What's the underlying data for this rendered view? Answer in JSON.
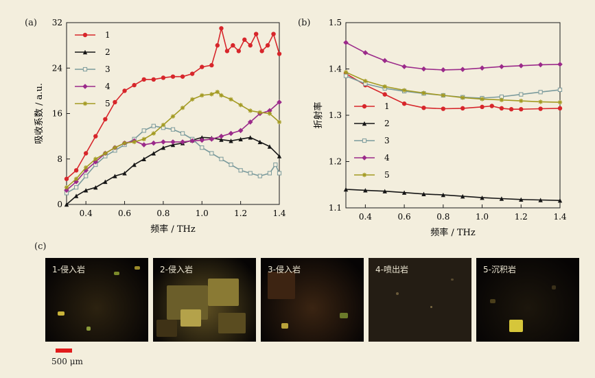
{
  "panels": {
    "a": "(a)",
    "b": "(b)",
    "c": "(c)"
  },
  "chart_data": [
    {
      "panel": "(a)",
      "type": "line",
      "xlabel": "频率 / THz",
      "ylabel": "吸收系数 / a.u.",
      "xlim": [
        0.3,
        1.4
      ],
      "ylim": [
        0,
        32
      ],
      "xticks": [
        0.4,
        0.6,
        0.8,
        1.0,
        1.2,
        1.4
      ],
      "yticks": [
        0,
        8,
        16,
        24,
        32
      ],
      "legend": "top-left",
      "series": [
        {
          "name": "1",
          "color": "#d7262b",
          "marker": "circle",
          "x": [
            0.3,
            0.35,
            0.4,
            0.45,
            0.5,
            0.55,
            0.6,
            0.65,
            0.7,
            0.75,
            0.8,
            0.85,
            0.9,
            0.95,
            1.0,
            1.05,
            1.08,
            1.1,
            1.13,
            1.16,
            1.19,
            1.22,
            1.25,
            1.28,
            1.31,
            1.34,
            1.37,
            1.4
          ],
          "y": [
            4.5,
            6,
            9,
            12,
            15,
            18,
            20,
            21,
            22,
            22,
            22.3,
            22.5,
            22.5,
            23,
            24.2,
            24.5,
            28,
            31,
            27,
            28,
            27,
            29,
            28,
            30,
            27,
            28,
            30,
            26.5
          ]
        },
        {
          "name": "2",
          "color": "#161616",
          "marker": "triangle",
          "x": [
            0.3,
            0.35,
            0.4,
            0.45,
            0.5,
            0.55,
            0.6,
            0.65,
            0.7,
            0.75,
            0.8,
            0.85,
            0.9,
            0.95,
            1.0,
            1.05,
            1.1,
            1.15,
            1.2,
            1.25,
            1.3,
            1.35,
            1.4
          ],
          "y": [
            0,
            1.5,
            2.5,
            3,
            4,
            5,
            5.5,
            7,
            8,
            9,
            10,
            10.5,
            10.8,
            11.3,
            11.8,
            11.7,
            11.4,
            11.2,
            11.5,
            11.8,
            11,
            10.2,
            8.5
          ]
        },
        {
          "name": "3",
          "color": "#7a9a9c",
          "marker": "open-square",
          "x": [
            0.3,
            0.35,
            0.4,
            0.45,
            0.5,
            0.55,
            0.6,
            0.65,
            0.7,
            0.75,
            0.8,
            0.85,
            0.9,
            0.95,
            1.0,
            1.05,
            1.1,
            1.15,
            1.2,
            1.25,
            1.3,
            1.35,
            1.38,
            1.4
          ],
          "y": [
            2,
            3,
            5,
            7,
            8.5,
            9.5,
            10.5,
            11.5,
            13,
            13.8,
            13.5,
            13.2,
            12.5,
            11.5,
            10,
            9,
            8,
            7,
            6,
            5.5,
            5,
            5.5,
            7,
            5.5
          ]
        },
        {
          "name": "4",
          "color": "#9b2a8a",
          "marker": "diamond",
          "x": [
            0.3,
            0.35,
            0.4,
            0.45,
            0.5,
            0.55,
            0.6,
            0.65,
            0.7,
            0.75,
            0.8,
            0.85,
            0.9,
            0.95,
            1.0,
            1.05,
            1.1,
            1.15,
            1.2,
            1.25,
            1.3,
            1.35,
            1.4
          ],
          "y": [
            2.5,
            4,
            6,
            7.5,
            9,
            10,
            10.8,
            11.2,
            10.5,
            10.8,
            11,
            11,
            11,
            11.2,
            11.3,
            11.5,
            12,
            12.5,
            13,
            14.5,
            16,
            16.5,
            18
          ]
        },
        {
          "name": "5",
          "color": "#a39a22",
          "marker": "star",
          "x": [
            0.3,
            0.35,
            0.4,
            0.45,
            0.5,
            0.55,
            0.6,
            0.65,
            0.7,
            0.75,
            0.8,
            0.85,
            0.9,
            0.95,
            1.0,
            1.05,
            1.08,
            1.1,
            1.15,
            1.2,
            1.25,
            1.3,
            1.35,
            1.4
          ],
          "y": [
            3,
            4.5,
            6.5,
            8,
            9,
            10,
            10.8,
            11,
            11.5,
            12.5,
            14,
            15.5,
            17,
            18.5,
            19.2,
            19.4,
            19.8,
            19.2,
            18.5,
            17.5,
            16.5,
            16.2,
            16,
            14.5
          ]
        }
      ]
    },
    {
      "panel": "(b)",
      "type": "line",
      "xlabel": "频率 / THz",
      "ylabel": "折射率",
      "xlim": [
        0.3,
        1.4
      ],
      "ylim": [
        1.1,
        1.5
      ],
      "xticks": [
        0.4,
        0.6,
        0.8,
        1.0,
        1.2,
        1.4
      ],
      "yticks": [
        1.1,
        1.2,
        1.3,
        1.4,
        1.5
      ],
      "legend": "lower-left",
      "series": [
        {
          "name": "1",
          "color": "#d7262b",
          "marker": "circle",
          "x": [
            0.3,
            0.4,
            0.5,
            0.6,
            0.7,
            0.8,
            0.9,
            1.0,
            1.05,
            1.1,
            1.15,
            1.2,
            1.3,
            1.4
          ],
          "y": [
            1.39,
            1.365,
            1.345,
            1.325,
            1.316,
            1.314,
            1.315,
            1.318,
            1.32,
            1.315,
            1.313,
            1.313,
            1.314,
            1.315
          ]
        },
        {
          "name": "2",
          "color": "#161616",
          "marker": "triangle",
          "x": [
            0.3,
            0.4,
            0.5,
            0.6,
            0.7,
            0.8,
            0.9,
            1.0,
            1.1,
            1.2,
            1.3,
            1.4
          ],
          "y": [
            1.14,
            1.138,
            1.136,
            1.133,
            1.13,
            1.128,
            1.125,
            1.122,
            1.12,
            1.118,
            1.117,
            1.116
          ]
        },
        {
          "name": "3",
          "color": "#7a9a9c",
          "marker": "open-square",
          "x": [
            0.3,
            0.4,
            0.5,
            0.6,
            0.7,
            0.8,
            0.9,
            1.0,
            1.1,
            1.2,
            1.3,
            1.4
          ],
          "y": [
            1.385,
            1.368,
            1.358,
            1.352,
            1.347,
            1.343,
            1.339,
            1.337,
            1.34,
            1.345,
            1.35,
            1.355
          ]
        },
        {
          "name": "4",
          "color": "#9b2a8a",
          "marker": "diamond",
          "x": [
            0.3,
            0.4,
            0.5,
            0.6,
            0.7,
            0.8,
            0.9,
            1.0,
            1.1,
            1.2,
            1.3,
            1.4
          ],
          "y": [
            1.457,
            1.435,
            1.418,
            1.405,
            1.4,
            1.398,
            1.399,
            1.402,
            1.405,
            1.407,
            1.409,
            1.41
          ]
        },
        {
          "name": "5",
          "color": "#a39a22",
          "marker": "star",
          "x": [
            0.3,
            0.4,
            0.5,
            0.6,
            0.7,
            0.8,
            0.9,
            1.0,
            1.1,
            1.2,
            1.3,
            1.4
          ],
          "y": [
            1.393,
            1.374,
            1.362,
            1.354,
            1.348,
            1.343,
            1.338,
            1.335,
            1.333,
            1.331,
            1.329,
            1.328
          ]
        }
      ]
    }
  ],
  "micrographs": [
    {
      "label": "1-侵入岩",
      "tint": "#2c2210"
    },
    {
      "label": "2-侵入岩",
      "tint": "#5e4f22"
    },
    {
      "label": "3-侵入岩",
      "tint": "#3a2412"
    },
    {
      "label": "4-喷出岩",
      "tint": "#2a2318"
    },
    {
      "label": "5-沉积岩",
      "tint": "#1c160c"
    }
  ],
  "scale": {
    "label": "500 μm",
    "color": "#e11b1b"
  }
}
